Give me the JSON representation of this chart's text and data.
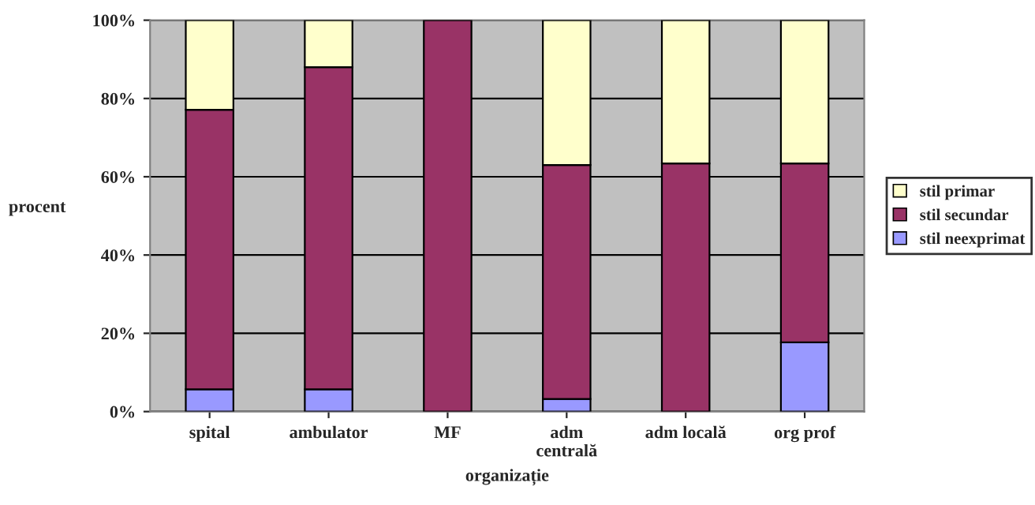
{
  "chart_data": {
    "type": "bar",
    "stacked": true,
    "xlabel": "organizație",
    "ylabel": "procent",
    "categories": [
      "spital",
      "ambulator",
      "MF",
      "adm\ncentrală",
      "adm locală",
      "org prof"
    ],
    "series": [
      {
        "name": "stil neexprimat",
        "color": "#9999ff",
        "values": [
          5.7,
          5.7,
          0,
          3.2,
          0,
          17.7
        ]
      },
      {
        "name": "stil secundar",
        "color": "#993366",
        "values": [
          71.4,
          82.3,
          100,
          59.8,
          63.4,
          45.7
        ]
      },
      {
        "name": "stil primar",
        "color": "#ffffcc",
        "values": [
          22.9,
          12.0,
          0,
          37.0,
          36.6,
          36.6
        ]
      }
    ],
    "ylim": [
      0,
      100
    ],
    "yticks": [
      {
        "value": 0,
        "label": "0%"
      },
      {
        "value": 20,
        "label": "20%"
      },
      {
        "value": 40,
        "label": "40%"
      },
      {
        "value": 60,
        "label": "60%"
      },
      {
        "value": 80,
        "label": "80%"
      },
      {
        "value": 100,
        "label": "100%"
      }
    ],
    "grid": "y",
    "legend": "right"
  }
}
